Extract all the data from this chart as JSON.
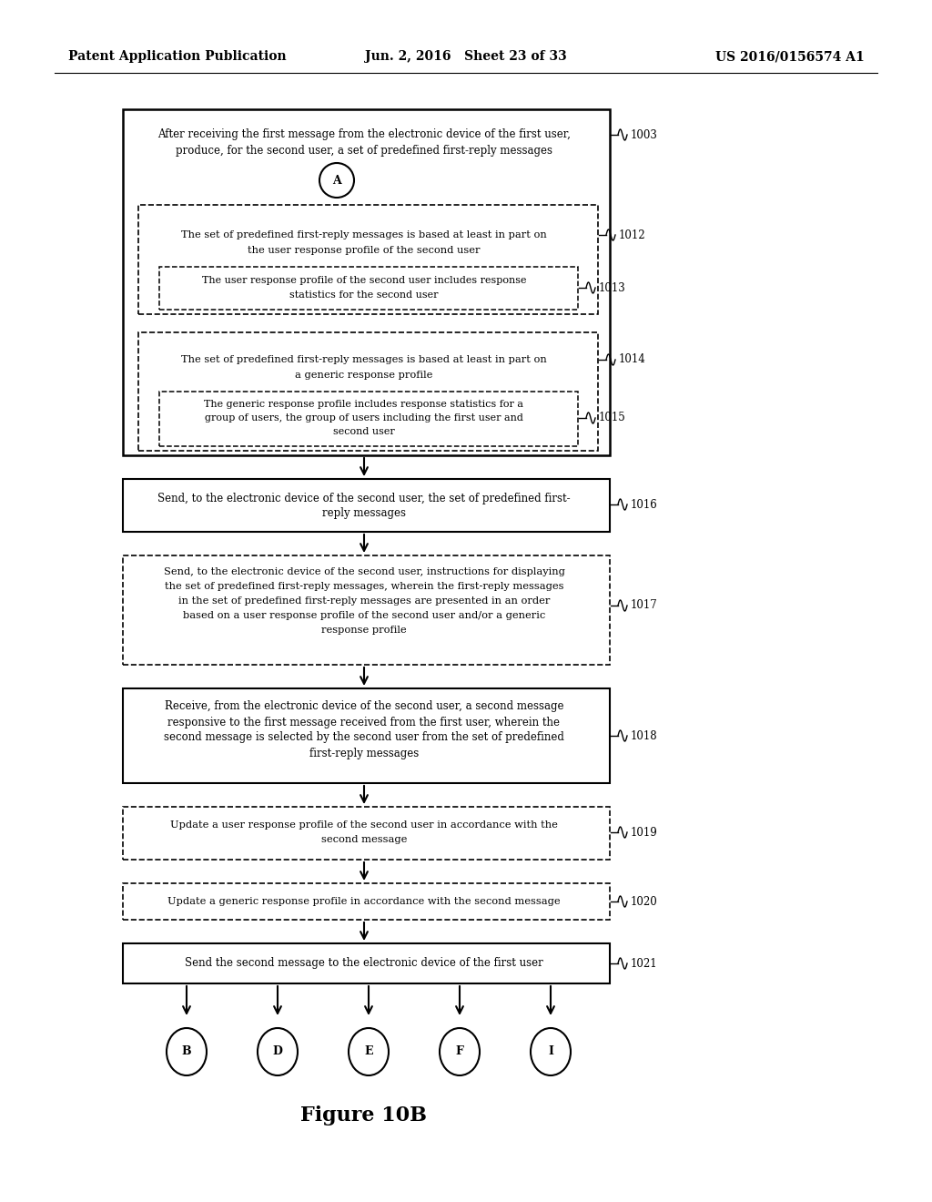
{
  "header_left": "Patent Application Publication",
  "header_mid": "Jun. 2, 2016   Sheet 23 of 33",
  "header_right": "US 2016/0156574 A1",
  "figure_label": "Figure 10B",
  "background_color": "#ffffff"
}
